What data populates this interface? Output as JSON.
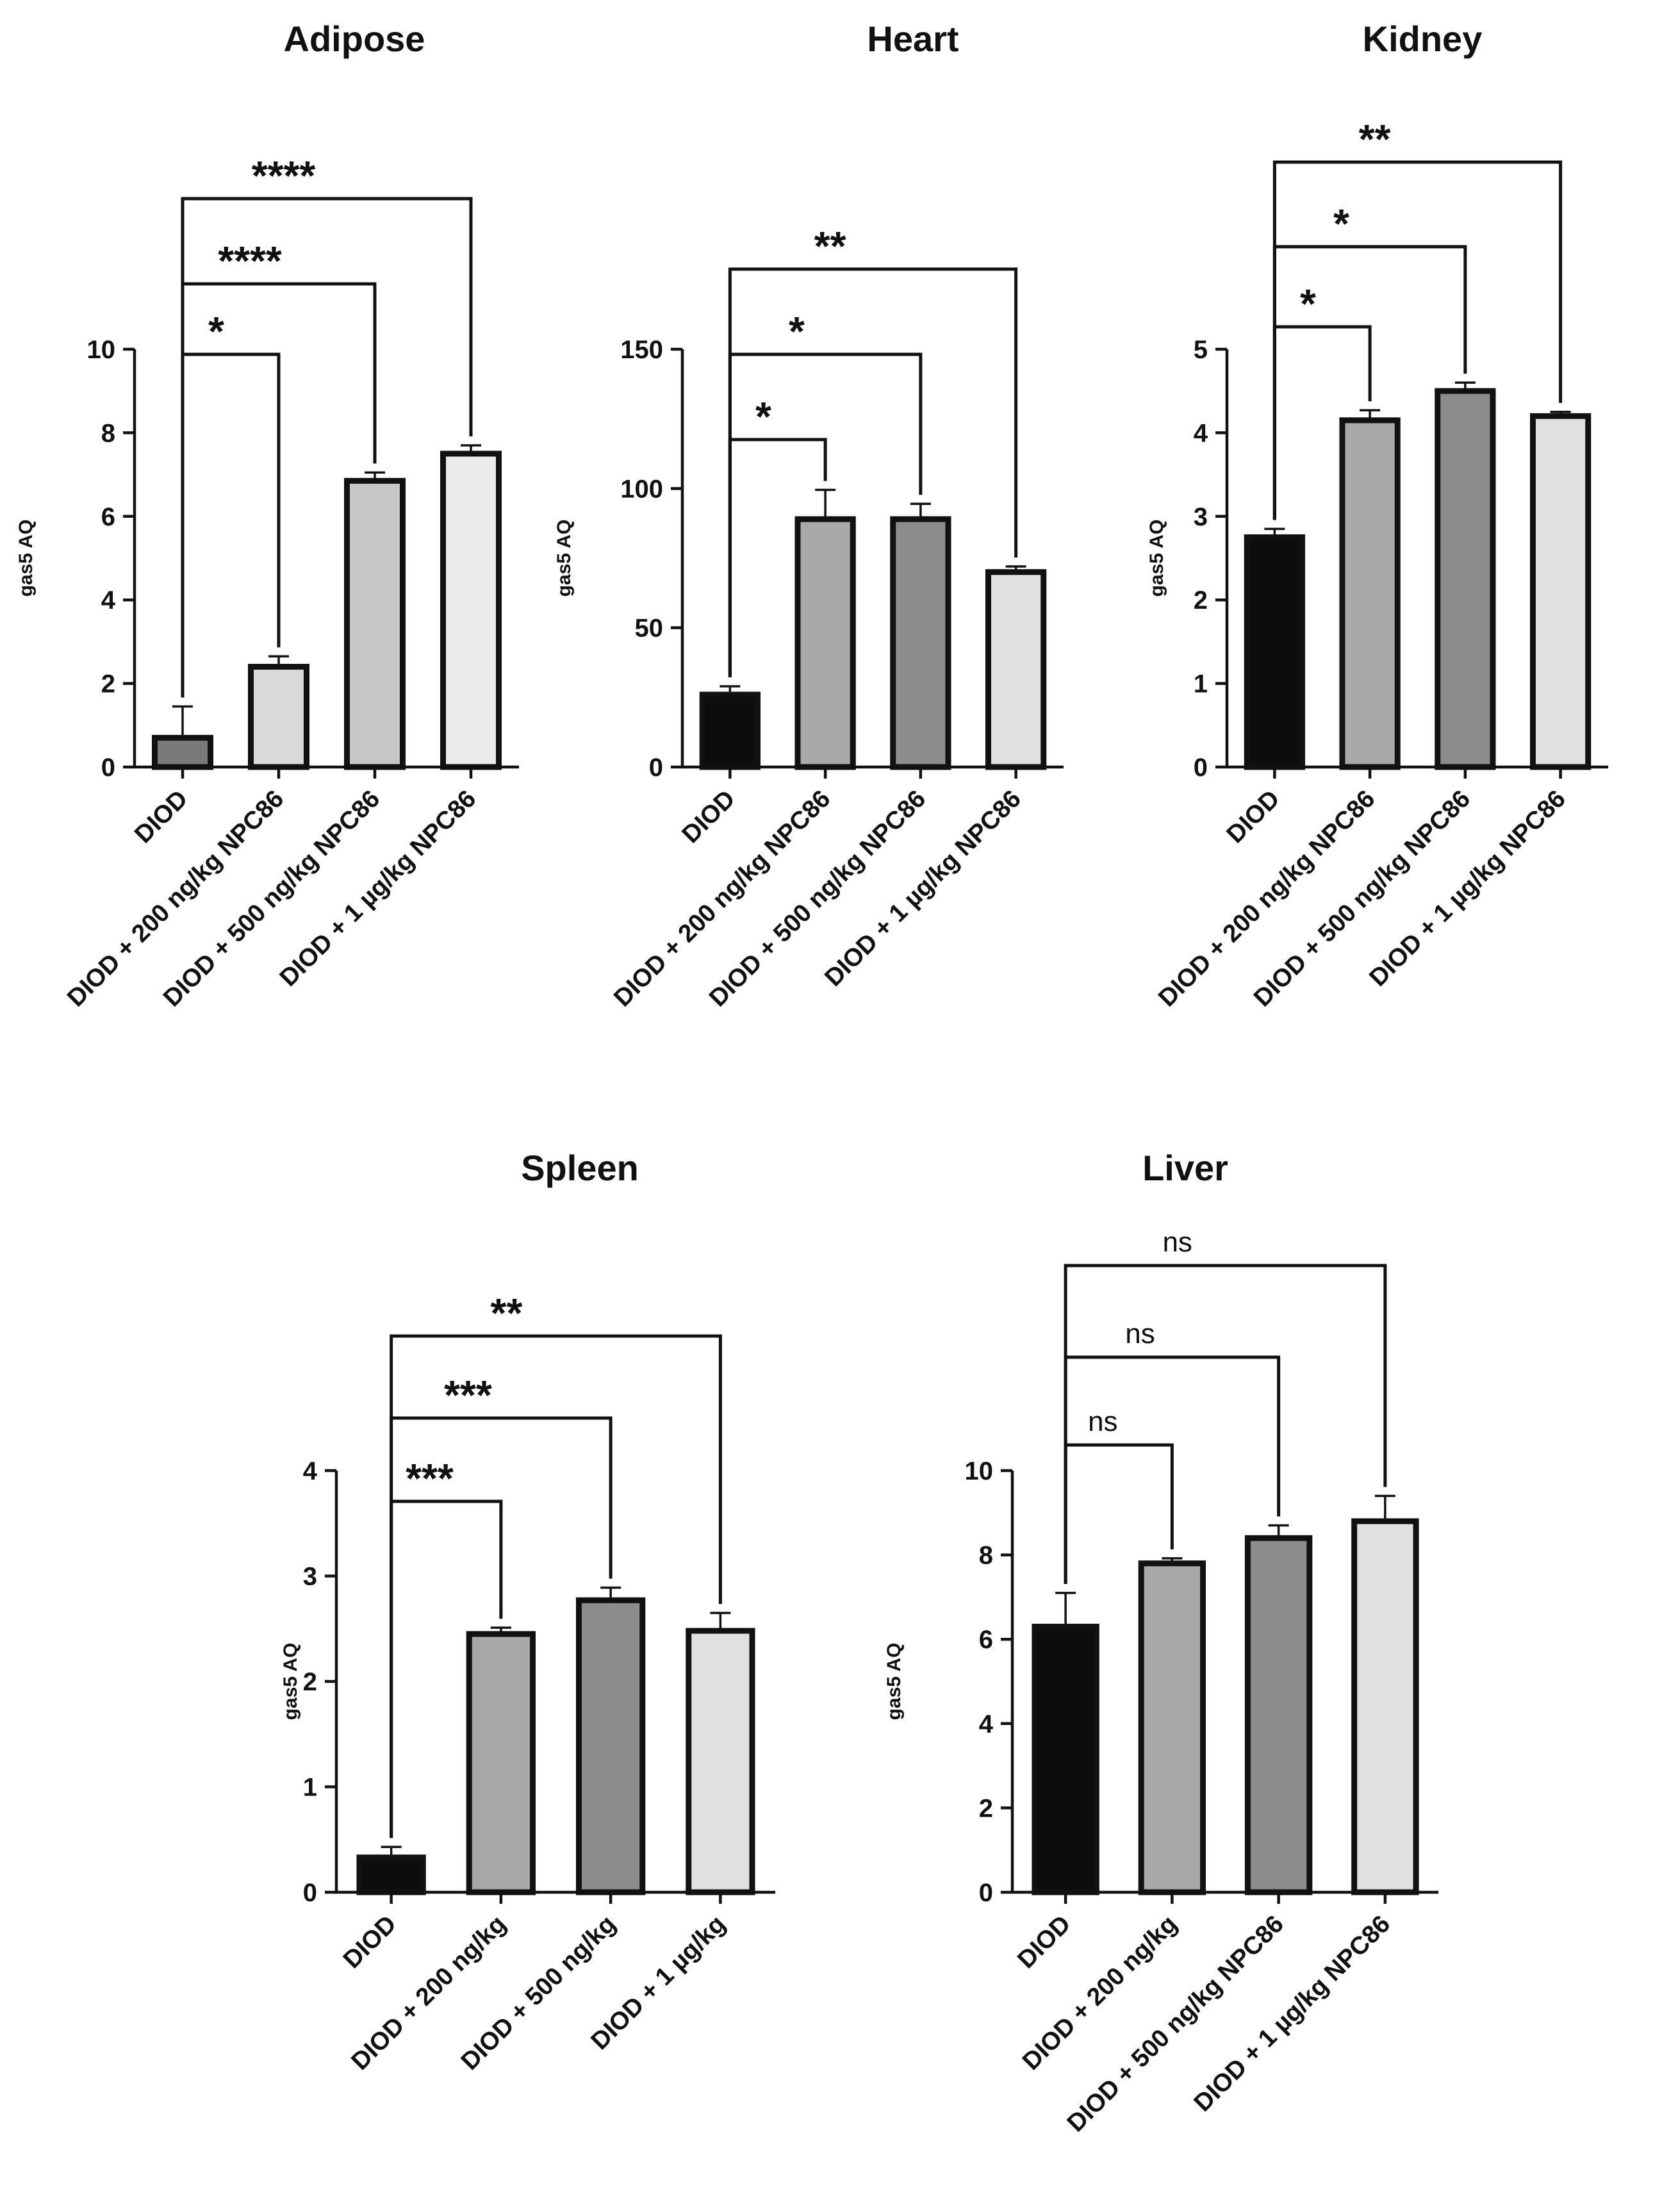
{
  "chart_data": [
    {
      "type": "bar",
      "title": "Adipose",
      "ylabel": "gas5 AQ",
      "xlabel": "",
      "ylim": [
        0,
        10
      ],
      "yticks": [
        0,
        2,
        4,
        6,
        8,
        10
      ],
      "categories": [
        "DIOD",
        "DIOD + 200 ng/kg NPC86",
        "DIOD + 500 ng/kg NPC86",
        "DIOD + 1 µg/kg NPC86"
      ],
      "values": [
        0.7,
        2.4,
        6.85,
        7.5
      ],
      "errors": [
        0.75,
        0.25,
        0.2,
        0.2
      ],
      "colors": [
        "#7a7a7a",
        "#d9d9d9",
        "#c6c6c6",
        "#ebebeb"
      ],
      "comparisons": [
        {
          "from": 0,
          "to": 1,
          "label": "*",
          "level": 1
        },
        {
          "from": 0,
          "to": 2,
          "label": "****",
          "level": 2
        },
        {
          "from": 0,
          "to": 3,
          "label": "****",
          "level": 3
        }
      ]
    },
    {
      "type": "bar",
      "title": "Heart",
      "ylabel": "gas5 AQ",
      "xlabel": "",
      "ylim": [
        0,
        150
      ],
      "yticks": [
        0,
        50,
        100,
        150
      ],
      "categories": [
        "DIOD",
        "DIOD + 200 ng/kg NPC86",
        "DIOD + 500 ng/kg NPC86",
        "DIOD + 1 µg/kg NPC86"
      ],
      "values": [
        26,
        89,
        89,
        70
      ],
      "errors": [
        3,
        10.5,
        5.5,
        2
      ],
      "colors": [
        "#0d0d0d",
        "#a8a8a8",
        "#8c8c8c",
        "#e0e0e0"
      ],
      "comparisons": [
        {
          "from": 0,
          "to": 1,
          "label": "*",
          "level": 1
        },
        {
          "from": 0,
          "to": 2,
          "label": "*",
          "level": 2
        },
        {
          "from": 0,
          "to": 3,
          "label": "**",
          "level": 3
        }
      ]
    },
    {
      "type": "bar",
      "title": "Kidney",
      "ylabel": "gas5 AQ",
      "xlabel": "",
      "ylim": [
        0,
        5
      ],
      "yticks": [
        0,
        1,
        2,
        3,
        4,
        5
      ],
      "categories": [
        "DIOD",
        "DIOD + 200 ng/kg NPC86",
        "DIOD + 500 ng/kg NPC86",
        "DIOD + 1 µg/kg NPC86"
      ],
      "values": [
        2.75,
        4.15,
        4.5,
        4.2
      ],
      "errors": [
        0.1,
        0.12,
        0.1,
        0.05
      ],
      "colors": [
        "#0d0d0d",
        "#a8a8a8",
        "#8c8c8c",
        "#e0e0e0"
      ],
      "comparisons": [
        {
          "from": 0,
          "to": 1,
          "label": "*",
          "level": 1
        },
        {
          "from": 0,
          "to": 2,
          "label": "*",
          "level": 2
        },
        {
          "from": 0,
          "to": 3,
          "label": "**",
          "level": 3
        }
      ]
    },
    {
      "type": "bar",
      "title": "Spleen",
      "ylabel": "gas5 AQ",
      "xlabel": "",
      "ylim": [
        0,
        4
      ],
      "yticks": [
        0,
        1,
        2,
        3,
        4
      ],
      "categories": [
        "DIOD",
        "DIOD + 200 ng/kg",
        "DIOD + 500 ng/kg",
        "DIOD + 1 µg/kg"
      ],
      "values": [
        0.33,
        2.45,
        2.77,
        2.48
      ],
      "errors": [
        0.1,
        0.06,
        0.12,
        0.17
      ],
      "colors": [
        "#0d0d0d",
        "#a8a8a8",
        "#8c8c8c",
        "#e0e0e0"
      ],
      "comparisons": [
        {
          "from": 0,
          "to": 1,
          "label": "***",
          "level": 1
        },
        {
          "from": 0,
          "to": 2,
          "label": "***",
          "level": 2
        },
        {
          "from": 0,
          "to": 3,
          "label": "**",
          "level": 3
        }
      ]
    },
    {
      "type": "bar",
      "title": "Liver",
      "ylabel": "gas5 AQ",
      "xlabel": "",
      "ylim": [
        0,
        10
      ],
      "yticks": [
        0,
        2,
        4,
        6,
        8,
        10
      ],
      "categories": [
        "DIOD",
        "DIOD + 200 ng/kg",
        "DIOD + 500 ng/kg NPC86",
        "DIOD + 1 µg/kg NPC86"
      ],
      "values": [
        6.3,
        7.8,
        8.4,
        8.8
      ],
      "errors": [
        0.8,
        0.12,
        0.3,
        0.6
      ],
      "colors": [
        "#0d0d0d",
        "#a8a8a8",
        "#8c8c8c",
        "#e0e0e0"
      ],
      "comparisons": [
        {
          "from": 0,
          "to": 1,
          "label": "ns",
          "level": 1
        },
        {
          "from": 0,
          "to": 2,
          "label": "ns",
          "level": 2
        },
        {
          "from": 0,
          "to": 3,
          "label": "ns",
          "level": 3
        }
      ]
    }
  ]
}
